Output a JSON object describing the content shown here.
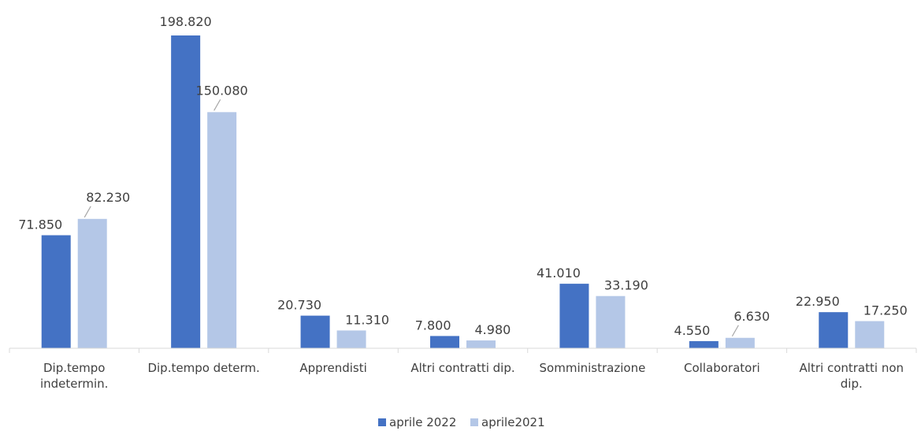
{
  "chart_data": {
    "type": "bar",
    "categories": [
      "Dip.tempo indetermin.",
      "Dip.tempo determ.",
      "Apprendisti",
      "Altri contratti dip.",
      "Somministrazione",
      "Collaboratori",
      "Altri contratti non dip."
    ],
    "category_lines": [
      [
        "Dip.tempo",
        "indetermin."
      ],
      [
        "Dip.tempo determ."
      ],
      [
        "Apprendisti"
      ],
      [
        "Altri contratti dip."
      ],
      [
        "Somministrazione"
      ],
      [
        "Collaboratori"
      ],
      [
        "Altri contratti non",
        "dip."
      ]
    ],
    "series": [
      {
        "name": "aprile 2022",
        "color": "#4472c4",
        "values": [
          71850,
          198820,
          20730,
          7800,
          41010,
          4550,
          22950
        ],
        "labels": [
          "71.850",
          "198.820",
          "20.730",
          "7.800",
          "41.010",
          "4.550",
          "22.950"
        ]
      },
      {
        "name": "aprile2021",
        "color": "#b4c7e7",
        "values": [
          82230,
          150080,
          11310,
          4980,
          33190,
          6630,
          17250
        ],
        "labels": [
          "82.230",
          "150.080",
          "11.310",
          "4.980",
          "33.190",
          "6.630",
          "17.250"
        ]
      }
    ],
    "title": "",
    "xlabel": "",
    "ylabel": "",
    "ylim": [
      0,
      198820
    ],
    "grid": false,
    "legend_position": "bottom"
  }
}
